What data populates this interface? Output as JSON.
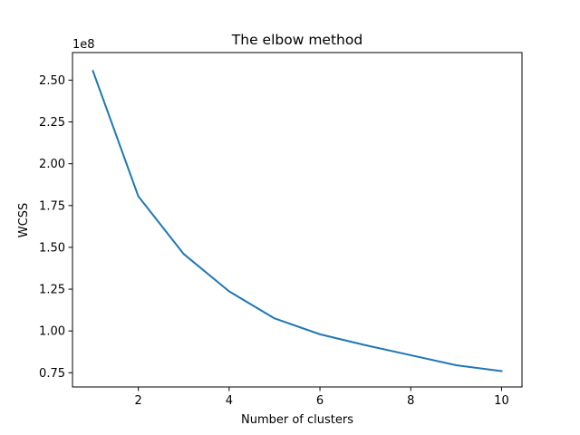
{
  "chart_data": {
    "type": "line",
    "title": "The elbow method",
    "xlabel": "Number of clusters",
    "ylabel": "WCSS",
    "y_offset_label": "1e8",
    "xlim": [
      0.55,
      10.45
    ],
    "ylim": [
      0.665,
      2.665
    ],
    "x_ticks": [
      2,
      4,
      6,
      8,
      10
    ],
    "x_tick_labels": [
      "2",
      "4",
      "6",
      "8",
      "10"
    ],
    "y_ticks": [
      0.75,
      1.0,
      1.25,
      1.5,
      1.75,
      2.0,
      2.25,
      2.5
    ],
    "y_tick_labels": [
      "0.75",
      "1.00",
      "1.25",
      "1.50",
      "1.75",
      "2.00",
      "2.25",
      "2.50"
    ],
    "grid": false,
    "series": [
      {
        "color": "#1f77b4",
        "x": [
          1,
          2,
          3,
          4,
          5,
          6,
          7,
          8,
          9,
          10
        ],
        "y": [
          2.555,
          1.805,
          1.46,
          1.237,
          1.075,
          0.98,
          0.915,
          0.855,
          0.795,
          0.76
        ]
      }
    ]
  }
}
